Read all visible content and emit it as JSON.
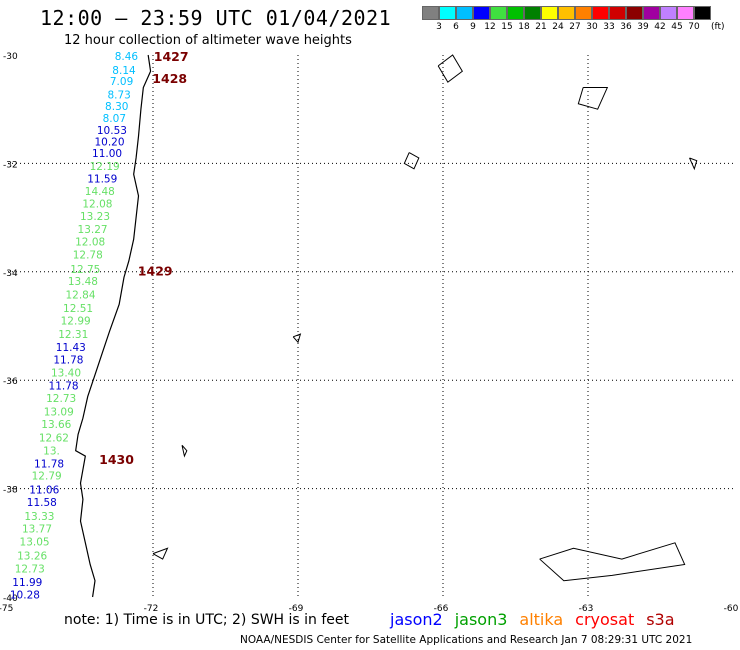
{
  "title": "12:00 – 23:59 UTC 01/04/2021",
  "subtitle": "12 hour collection of altimeter wave heights",
  "legend": {
    "colors": [
      "#808080",
      "#00ffff",
      "#00bfff",
      "#0000ff",
      "#40e040",
      "#00c000",
      "#008000",
      "#ffff00",
      "#ffc000",
      "#ff8000",
      "#ff0000",
      "#d00000",
      "#8b0000",
      "#a000a0",
      "#c080ff",
      "#ff80ff",
      "#000000"
    ],
    "labels": [
      "3",
      "6",
      "9",
      "12",
      "15",
      "18",
      "21",
      "24",
      "27",
      "30",
      "33",
      "36",
      "39",
      "42",
      "45",
      "70"
    ],
    "unit": "(ft)"
  },
  "axes": {
    "lat_labels": [
      "-30",
      "-32",
      "-34",
      "-36",
      "-38",
      "-40"
    ],
    "lon_labels": [
      "-75",
      "-72",
      "-69",
      "-66",
      "-63",
      "-60"
    ],
    "lat_range": [
      -40,
      -30
    ],
    "lon_range": [
      -75,
      -60
    ]
  },
  "time_labels": [
    {
      "text": "1427",
      "lat": -30.02,
      "lon": -72.15
    },
    {
      "text": "1428",
      "lat": -30.42,
      "lon": -72.18
    },
    {
      "text": "1429",
      "lat": -33.98,
      "lon": -72.48
    },
    {
      "text": "1430",
      "lat": -37.45,
      "lon": -73.28
    }
  ],
  "wave_heights": [
    {
      "v": "8.46",
      "lat": -30.02,
      "lon": -72.55,
      "c": "#00bfff"
    },
    {
      "v": "8.14",
      "lat": -30.28,
      "lon": -72.6,
      "c": "#00bfff"
    },
    {
      "v": "7.09",
      "lat": -30.48,
      "lon": -72.65,
      "c": "#00bfff"
    },
    {
      "v": "8.73",
      "lat": -30.73,
      "lon": -72.7,
      "c": "#00bfff"
    },
    {
      "v": "8.30",
      "lat": -30.94,
      "lon": -72.75,
      "c": "#00bfff"
    },
    {
      "v": "8.07",
      "lat": -31.16,
      "lon": -72.8,
      "c": "#00bfff"
    },
    {
      "v": "10.53",
      "lat": -31.38,
      "lon": -72.85,
      "c": "#0000cd"
    },
    {
      "v": "10.20",
      "lat": -31.6,
      "lon": -72.9,
      "c": "#0000cd"
    },
    {
      "v": "11.00",
      "lat": -31.81,
      "lon": -72.95,
      "c": "#0000cd"
    },
    {
      "v": "12.19",
      "lat": -32.05,
      "lon": -73.0,
      "c": "#66e066"
    },
    {
      "v": "11.59",
      "lat": -32.28,
      "lon": -73.05,
      "c": "#0000cd"
    },
    {
      "v": "14.48",
      "lat": -32.51,
      "lon": -73.1,
      "c": "#66e066"
    },
    {
      "v": "12.08",
      "lat": -32.74,
      "lon": -73.15,
      "c": "#66e066"
    },
    {
      "v": "13.23",
      "lat": -32.97,
      "lon": -73.2,
      "c": "#66e066"
    },
    {
      "v": "13.27",
      "lat": -33.21,
      "lon": -73.25,
      "c": "#66e066"
    },
    {
      "v": "12.08",
      "lat": -33.44,
      "lon": -73.3,
      "c": "#66e066"
    },
    {
      "v": "12.78",
      "lat": -33.68,
      "lon": -73.35,
      "c": "#66e066"
    },
    {
      "v": "12.75",
      "lat": -33.95,
      "lon": -73.4,
      "c": "#66e066"
    },
    {
      "v": "13.48",
      "lat": -34.17,
      "lon": -73.45,
      "c": "#66e066"
    },
    {
      "v": "12.84",
      "lat": -34.42,
      "lon": -73.5,
      "c": "#66e066"
    },
    {
      "v": "12.51",
      "lat": -34.67,
      "lon": -73.55,
      "c": "#66e066"
    },
    {
      "v": "12.99",
      "lat": -34.9,
      "lon": -73.6,
      "c": "#66e066"
    },
    {
      "v": "12.31",
      "lat": -35.15,
      "lon": -73.65,
      "c": "#66e066"
    },
    {
      "v": "11.43",
      "lat": -35.39,
      "lon": -73.7,
      "c": "#0000cd"
    },
    {
      "v": "11.78",
      "lat": -35.62,
      "lon": -73.75,
      "c": "#0000cd"
    },
    {
      "v": "13.40",
      "lat": -35.86,
      "lon": -73.8,
      "c": "#66e066"
    },
    {
      "v": "11.78",
      "lat": -36.1,
      "lon": -73.85,
      "c": "#0000cd"
    },
    {
      "v": "12.73",
      "lat": -36.33,
      "lon": -73.9,
      "c": "#66e066"
    },
    {
      "v": "13.09",
      "lat": -36.58,
      "lon": -73.95,
      "c": "#66e066"
    },
    {
      "v": "13.66",
      "lat": -36.81,
      "lon": -74.0,
      "c": "#66e066"
    },
    {
      "v": "12.62",
      "lat": -37.06,
      "lon": -74.05,
      "c": "#66e066"
    },
    {
      "v": "13.",
      "lat": -37.3,
      "lon": -74.1,
      "c": "#66e066"
    },
    {
      "v": "11.78",
      "lat": -37.54,
      "lon": -74.15,
      "c": "#0000cd"
    },
    {
      "v": "12.79",
      "lat": -37.76,
      "lon": -74.2,
      "c": "#66e066"
    },
    {
      "v": "11.06",
      "lat": -38.02,
      "lon": -74.25,
      "c": "#0000cd"
    },
    {
      "v": "11.58",
      "lat": -38.25,
      "lon": -74.3,
      "c": "#0000cd"
    },
    {
      "v": "13.33",
      "lat": -38.51,
      "lon": -74.35,
      "c": "#66e066"
    },
    {
      "v": "13.77",
      "lat": -38.74,
      "lon": -74.4,
      "c": "#66e066"
    },
    {
      "v": "13.05",
      "lat": -38.98,
      "lon": -74.45,
      "c": "#66e066"
    },
    {
      "v": "13.26",
      "lat": -39.23,
      "lon": -74.5,
      "c": "#66e066"
    },
    {
      "v": "12.73",
      "lat": -39.47,
      "lon": -74.55,
      "c": "#66e066"
    },
    {
      "v": "11.99",
      "lat": -39.72,
      "lon": -74.6,
      "c": "#0000cd"
    },
    {
      "v": "10.28",
      "lat": -39.95,
      "lon": -74.65,
      "c": "#0000cd"
    }
  ],
  "note": "note:  1) Time is in UTC; 2) SWH is in feet",
  "satellites": [
    {
      "name": "jason2",
      "color": "#0000ff"
    },
    {
      "name": "jason3",
      "color": "#00a000"
    },
    {
      "name": "altika",
      "color": "#ff8000"
    },
    {
      "name": "cryosat",
      "color": "#ff0000"
    },
    {
      "name": "s3a",
      "color": "#b00000"
    }
  ],
  "credit": "NOAA/NESDIS Center for Satellite Applications and Research    Jan  7 08:29:31 UTC 2021"
}
